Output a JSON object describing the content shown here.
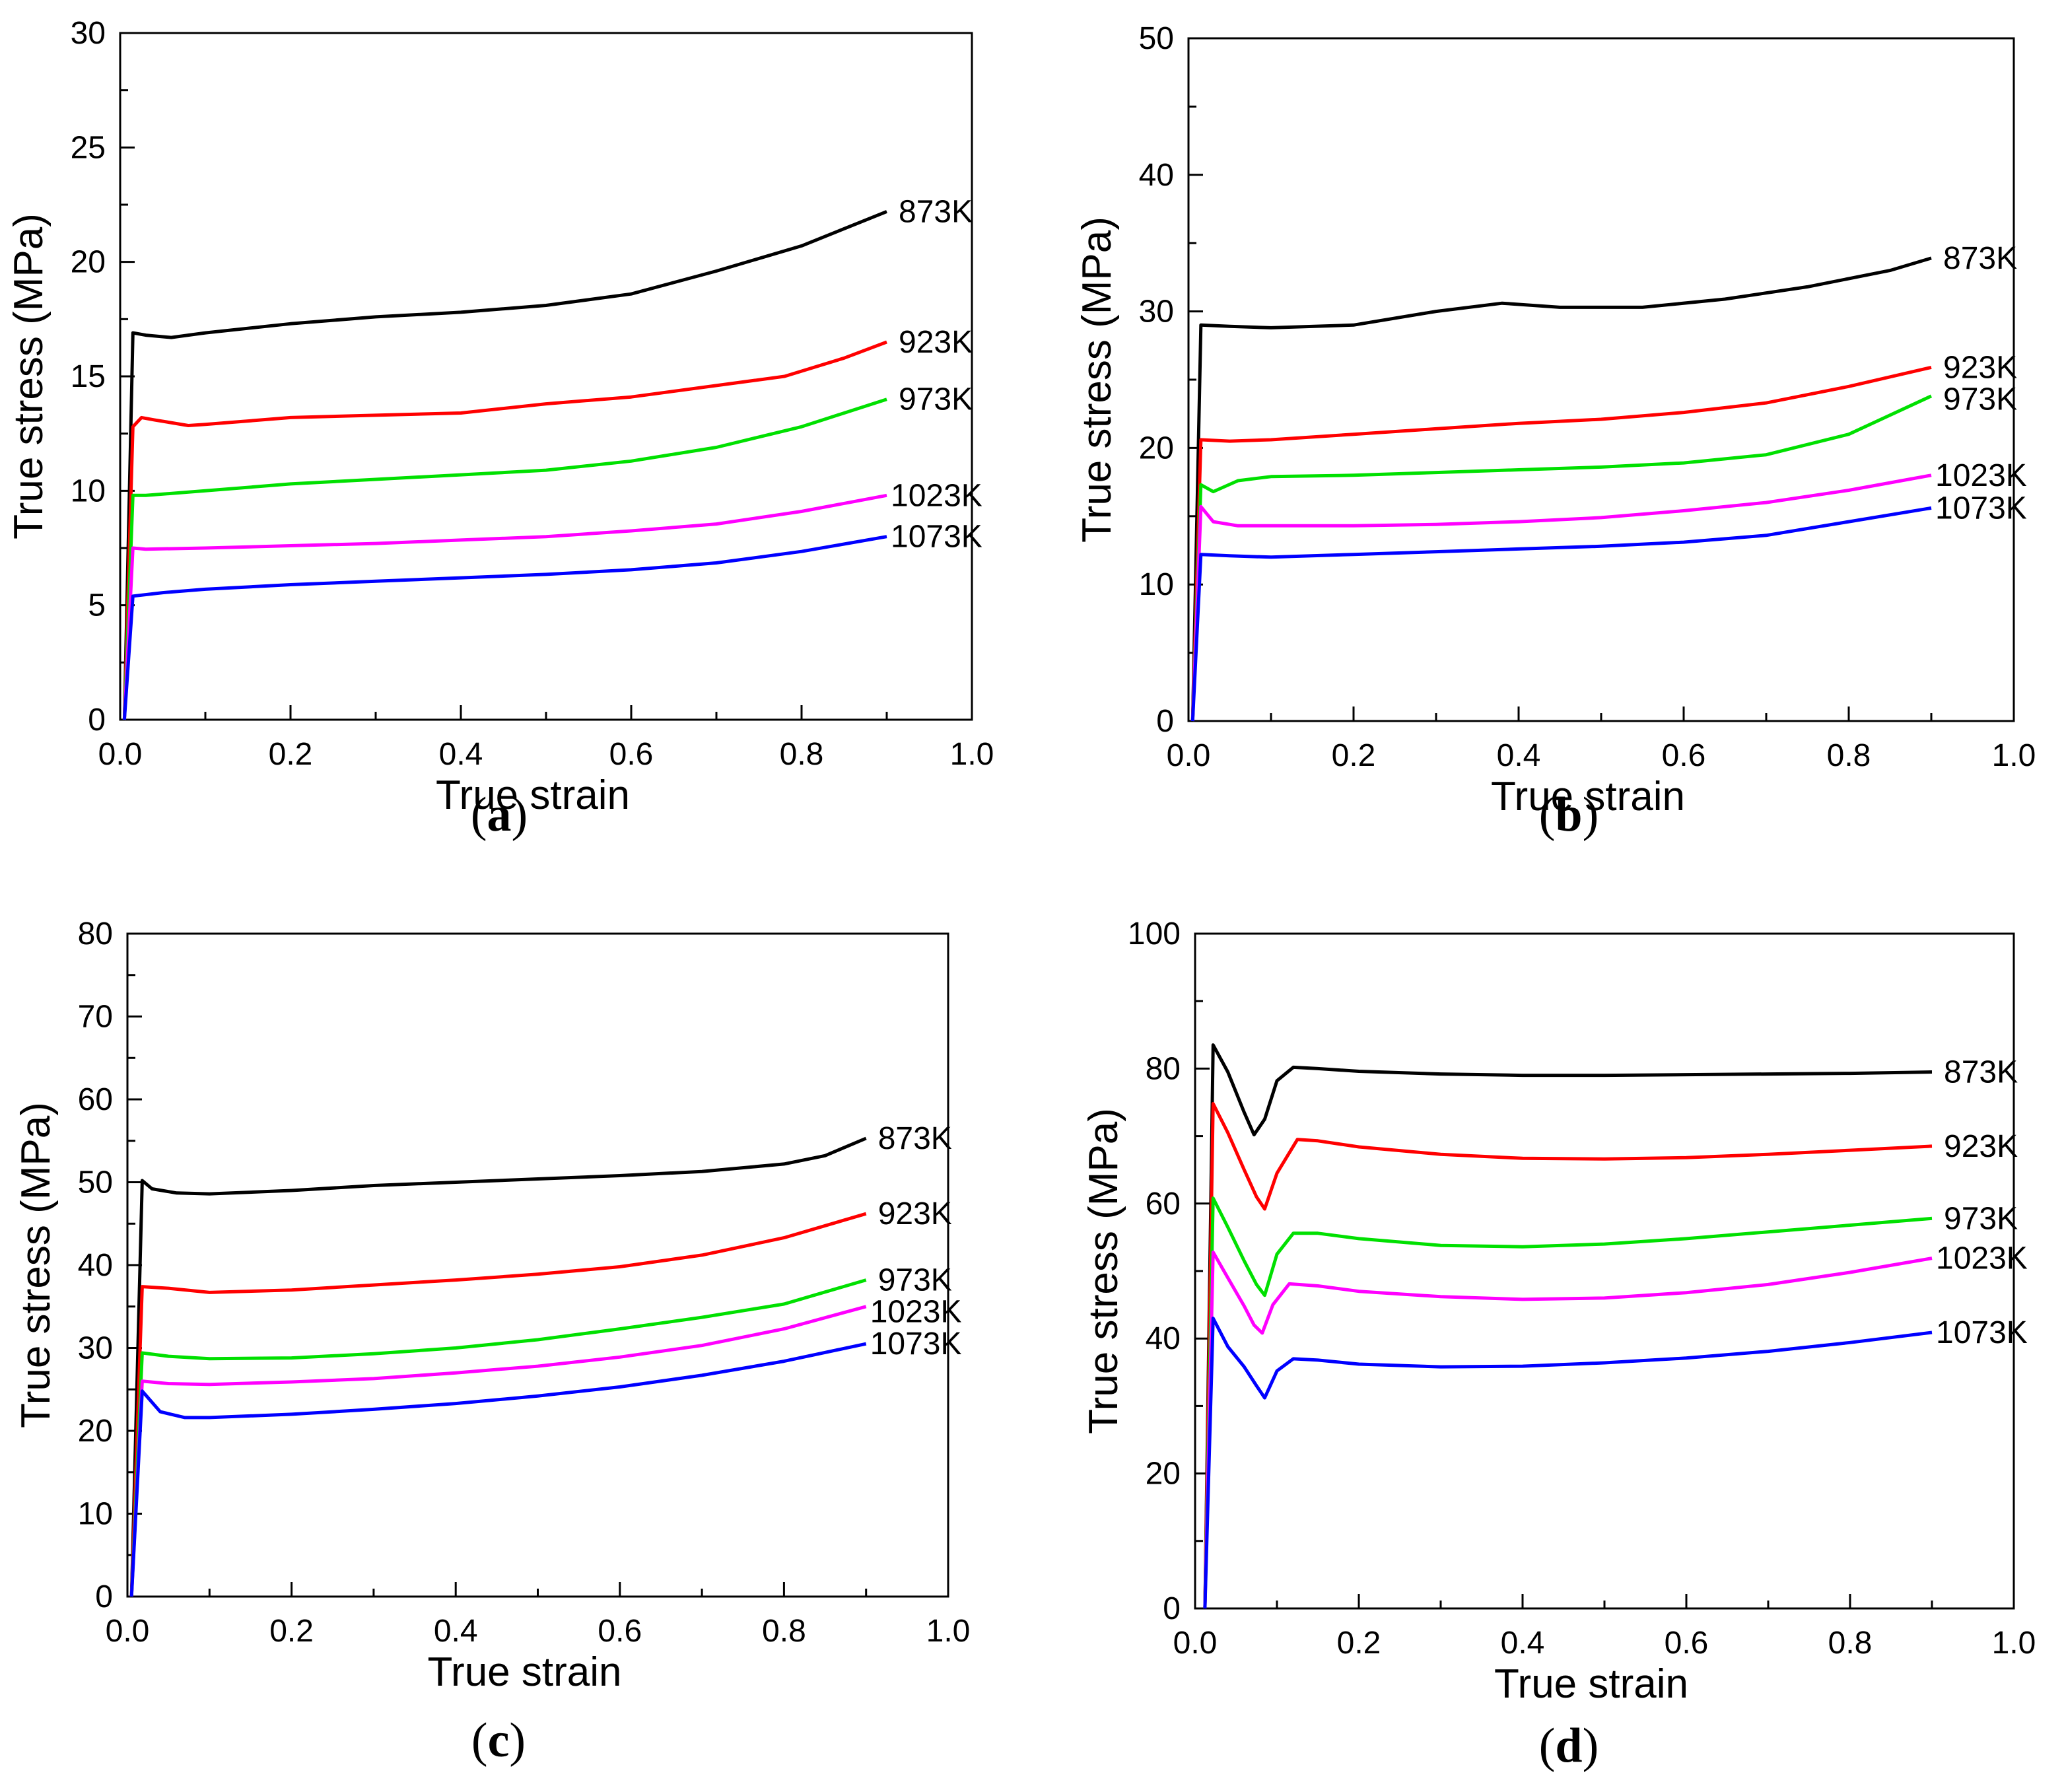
{
  "chart_data": [
    {
      "type": "line",
      "panel_label": "a",
      "xlabel": "True strain",
      "ylabel": "True stress (MPa)",
      "xlim": [
        0,
        1.0
      ],
      "ylim": [
        0,
        30
      ],
      "xticks": [
        "0.0",
        "0.2",
        "0.4",
        "0.6",
        "0.8",
        "1.0"
      ],
      "yticks": [
        "0",
        "5",
        "10",
        "15",
        "20",
        "25",
        "30"
      ],
      "grid": false,
      "series": [
        {
          "name": "873K",
          "color": "#000000",
          "x": [
            0.005,
            0.015,
            0.03,
            0.06,
            0.1,
            0.2,
            0.3,
            0.4,
            0.5,
            0.6,
            0.7,
            0.8,
            0.9
          ],
          "y": [
            0,
            16.9,
            16.8,
            16.7,
            16.9,
            17.3,
            17.6,
            17.8,
            18.1,
            18.6,
            19.6,
            20.7,
            22.2
          ]
        },
        {
          "name": "923K",
          "color": "#ff0000",
          "x": [
            0.005,
            0.015,
            0.025,
            0.04,
            0.08,
            0.1,
            0.2,
            0.3,
            0.4,
            0.5,
            0.6,
            0.7,
            0.78,
            0.85,
            0.9
          ],
          "y": [
            0,
            12.8,
            13.2,
            13.1,
            12.85,
            12.9,
            13.2,
            13.3,
            13.4,
            13.8,
            14.1,
            14.6,
            15.0,
            15.8,
            16.5
          ]
        },
        {
          "name": "973K",
          "color": "#00e000",
          "x": [
            0.005,
            0.015,
            0.03,
            0.1,
            0.2,
            0.3,
            0.4,
            0.5,
            0.6,
            0.7,
            0.8,
            0.9
          ],
          "y": [
            0,
            9.8,
            9.8,
            10.0,
            10.3,
            10.5,
            10.7,
            10.9,
            11.3,
            11.9,
            12.8,
            14.0
          ]
        },
        {
          "name": "1023K",
          "color": "#ff00ff",
          "x": [
            0.005,
            0.015,
            0.03,
            0.1,
            0.2,
            0.3,
            0.4,
            0.5,
            0.6,
            0.7,
            0.8,
            0.9
          ],
          "y": [
            0,
            7.5,
            7.45,
            7.5,
            7.6,
            7.7,
            7.85,
            8.0,
            8.25,
            8.55,
            9.1,
            9.8
          ]
        },
        {
          "name": "1073K",
          "color": "#0000ff",
          "x": [
            0.005,
            0.015,
            0.05,
            0.1,
            0.2,
            0.3,
            0.4,
            0.5,
            0.6,
            0.7,
            0.8,
            0.9
          ],
          "y": [
            0,
            5.4,
            5.55,
            5.7,
            5.9,
            6.05,
            6.2,
            6.35,
            6.55,
            6.85,
            7.35,
            8.0
          ]
        }
      ]
    },
    {
      "type": "line",
      "panel_label": "b",
      "xlabel": "True strain",
      "ylabel": "True stress (MPa)",
      "xlim": [
        0,
        1.0
      ],
      "ylim": [
        0,
        50
      ],
      "xticks": [
        "0.0",
        "0.2",
        "0.4",
        "0.6",
        "0.8",
        "1.0"
      ],
      "yticks": [
        "0",
        "10",
        "20",
        "30",
        "40",
        "50"
      ],
      "grid": false,
      "series": [
        {
          "name": "873K",
          "color": "#000000",
          "x": [
            0.005,
            0.015,
            0.05,
            0.1,
            0.2,
            0.3,
            0.38,
            0.45,
            0.55,
            0.65,
            0.75,
            0.85,
            0.9
          ],
          "y": [
            0,
            29.0,
            28.9,
            28.8,
            29.0,
            30.0,
            30.6,
            30.3,
            30.3,
            30.9,
            31.8,
            33.0,
            33.9
          ]
        },
        {
          "name": "923K",
          "color": "#ff0000",
          "x": [
            0.005,
            0.015,
            0.05,
            0.1,
            0.2,
            0.3,
            0.4,
            0.5,
            0.6,
            0.7,
            0.8,
            0.9
          ],
          "y": [
            0,
            20.6,
            20.5,
            20.6,
            21.0,
            21.4,
            21.8,
            22.1,
            22.6,
            23.3,
            24.5,
            25.9
          ]
        },
        {
          "name": "973K",
          "color": "#00e000",
          "x": [
            0.005,
            0.015,
            0.03,
            0.06,
            0.1,
            0.2,
            0.3,
            0.4,
            0.5,
            0.6,
            0.7,
            0.8,
            0.9
          ],
          "y": [
            0,
            17.3,
            16.8,
            17.6,
            17.9,
            18.0,
            18.2,
            18.4,
            18.6,
            18.9,
            19.5,
            21.0,
            23.8
          ]
        },
        {
          "name": "1023K",
          "color": "#ff00ff",
          "x": [
            0.005,
            0.015,
            0.03,
            0.06,
            0.1,
            0.2,
            0.3,
            0.4,
            0.5,
            0.6,
            0.7,
            0.8,
            0.9
          ],
          "y": [
            0,
            15.7,
            14.6,
            14.3,
            14.3,
            14.3,
            14.4,
            14.6,
            14.9,
            15.4,
            16.0,
            16.9,
            18.0
          ]
        },
        {
          "name": "1073K",
          "color": "#0000ff",
          "x": [
            0.005,
            0.015,
            0.05,
            0.1,
            0.2,
            0.3,
            0.4,
            0.5,
            0.6,
            0.7,
            0.8,
            0.9
          ],
          "y": [
            0,
            12.2,
            12.1,
            12.0,
            12.2,
            12.4,
            12.6,
            12.8,
            13.1,
            13.6,
            14.6,
            15.6
          ]
        }
      ]
    },
    {
      "type": "line",
      "panel_label": "c",
      "xlabel": "True strain",
      "ylabel": "True stress (MPa)",
      "xlim": [
        0,
        1.0
      ],
      "ylim": [
        0,
        80
      ],
      "xticks": [
        "0.0",
        "0.2",
        "0.4",
        "0.6",
        "0.8",
        "1.0"
      ],
      "yticks": [
        "0",
        "10",
        "20",
        "30",
        "40",
        "50",
        "60",
        "70",
        "80"
      ],
      "grid": false,
      "series": [
        {
          "name": "873K",
          "color": "#000000",
          "x": [
            0.005,
            0.018,
            0.03,
            0.06,
            0.1,
            0.2,
            0.3,
            0.4,
            0.5,
            0.6,
            0.7,
            0.8,
            0.85,
            0.9
          ],
          "y": [
            0,
            50.2,
            49.2,
            48.7,
            48.6,
            49.0,
            49.6,
            50.0,
            50.4,
            50.8,
            51.3,
            52.2,
            53.2,
            55.3
          ]
        },
        {
          "name": "923K",
          "color": "#ff0000",
          "x": [
            0.005,
            0.018,
            0.05,
            0.1,
            0.2,
            0.3,
            0.4,
            0.5,
            0.6,
            0.7,
            0.8,
            0.9
          ],
          "y": [
            0,
            37.4,
            37.2,
            36.7,
            37.0,
            37.6,
            38.2,
            38.9,
            39.8,
            41.2,
            43.3,
            46.2
          ]
        },
        {
          "name": "973K",
          "color": "#00e000",
          "x": [
            0.005,
            0.018,
            0.05,
            0.1,
            0.2,
            0.3,
            0.4,
            0.5,
            0.6,
            0.7,
            0.8,
            0.9
          ],
          "y": [
            0,
            29.4,
            29.0,
            28.7,
            28.8,
            29.3,
            30.0,
            31.0,
            32.3,
            33.7,
            35.3,
            38.2
          ]
        },
        {
          "name": "1023K",
          "color": "#ff00ff",
          "x": [
            0.005,
            0.018,
            0.05,
            0.1,
            0.2,
            0.3,
            0.4,
            0.5,
            0.6,
            0.7,
            0.8,
            0.9
          ],
          "y": [
            0,
            26.0,
            25.7,
            25.6,
            25.9,
            26.3,
            27.0,
            27.8,
            28.9,
            30.3,
            32.3,
            35.0
          ]
        },
        {
          "name": "1073K",
          "color": "#0000ff",
          "x": [
            0.005,
            0.018,
            0.04,
            0.07,
            0.1,
            0.2,
            0.3,
            0.4,
            0.5,
            0.6,
            0.7,
            0.8,
            0.9
          ],
          "y": [
            0,
            24.8,
            22.3,
            21.6,
            21.6,
            22.0,
            22.6,
            23.3,
            24.2,
            25.3,
            26.7,
            28.4,
            30.5
          ]
        }
      ]
    },
    {
      "type": "line",
      "panel_label": "d",
      "xlabel": "True strain",
      "ylabel": "True stress (MPa)",
      "xlim": [
        0,
        1.0
      ],
      "ylim": [
        0,
        100
      ],
      "xticks": [
        "0.0",
        "0.2",
        "0.4",
        "0.6",
        "0.8",
        "1.0"
      ],
      "yticks": [
        "0",
        "20",
        "40",
        "60",
        "80",
        "100"
      ],
      "grid": false,
      "series": [
        {
          "name": "873K",
          "color": "#000000",
          "x": [
            0.012,
            0.022,
            0.04,
            0.06,
            0.072,
            0.085,
            0.1,
            0.12,
            0.15,
            0.2,
            0.3,
            0.4,
            0.5,
            0.6,
            0.7,
            0.8,
            0.9
          ],
          "y": [
            0,
            83.5,
            79.5,
            73.5,
            70.2,
            72.5,
            78.2,
            80.2,
            80.0,
            79.6,
            79.2,
            79.0,
            79.0,
            79.1,
            79.2,
            79.3,
            79.5
          ]
        },
        {
          "name": "923K",
          "color": "#ff0000",
          "x": [
            0.012,
            0.022,
            0.04,
            0.06,
            0.075,
            0.085,
            0.1,
            0.125,
            0.15,
            0.2,
            0.3,
            0.4,
            0.5,
            0.6,
            0.7,
            0.8,
            0.9
          ],
          "y": [
            0,
            74.8,
            70.5,
            65.0,
            61.0,
            59.2,
            64.5,
            69.5,
            69.3,
            68.4,
            67.3,
            66.7,
            66.6,
            66.8,
            67.3,
            67.9,
            68.5
          ]
        },
        {
          "name": "973K",
          "color": "#00e000",
          "x": [
            0.012,
            0.022,
            0.04,
            0.06,
            0.075,
            0.085,
            0.1,
            0.12,
            0.15,
            0.2,
            0.3,
            0.4,
            0.5,
            0.6,
            0.7,
            0.8,
            0.9
          ],
          "y": [
            0,
            60.8,
            56.5,
            51.5,
            48.0,
            46.4,
            52.5,
            55.6,
            55.6,
            54.8,
            53.8,
            53.6,
            54.0,
            54.8,
            55.8,
            56.8,
            57.8
          ]
        },
        {
          "name": "1023K",
          "color": "#ff00ff",
          "x": [
            0.012,
            0.022,
            0.04,
            0.06,
            0.072,
            0.082,
            0.095,
            0.115,
            0.15,
            0.2,
            0.3,
            0.4,
            0.5,
            0.6,
            0.7,
            0.8,
            0.9
          ],
          "y": [
            0,
            52.8,
            49.0,
            44.8,
            42.0,
            40.8,
            45.0,
            48.1,
            47.8,
            47.0,
            46.2,
            45.8,
            46.0,
            46.8,
            48.0,
            49.8,
            51.9
          ]
        },
        {
          "name": "1073K",
          "color": "#0000ff",
          "x": [
            0.012,
            0.022,
            0.04,
            0.06,
            0.075,
            0.085,
            0.1,
            0.12,
            0.15,
            0.2,
            0.3,
            0.4,
            0.5,
            0.6,
            0.7,
            0.8,
            0.9
          ],
          "y": [
            0,
            43.0,
            38.8,
            35.8,
            33.0,
            31.2,
            35.2,
            37.0,
            36.8,
            36.2,
            35.8,
            35.9,
            36.4,
            37.1,
            38.1,
            39.4,
            40.9
          ]
        }
      ]
    }
  ]
}
